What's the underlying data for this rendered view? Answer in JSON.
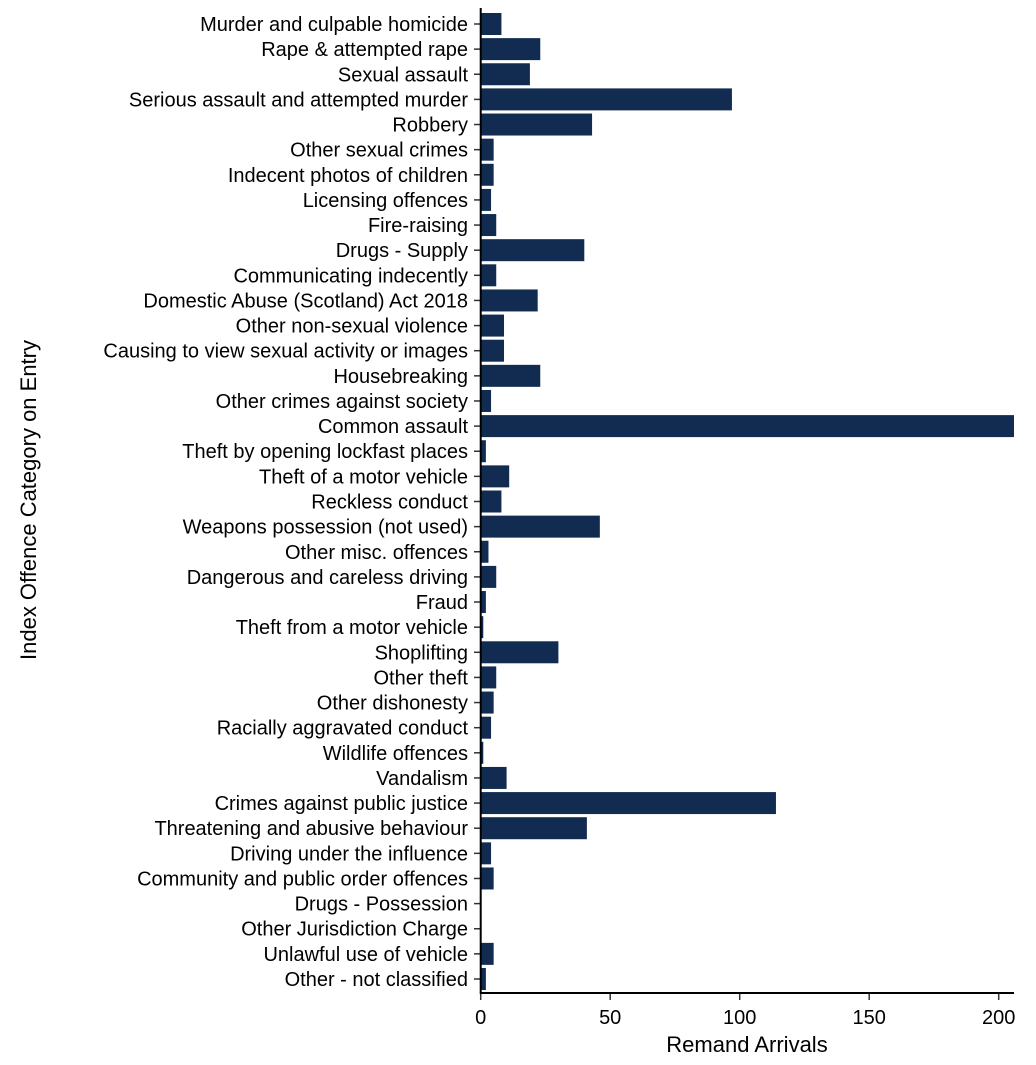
{
  "chart_data": {
    "type": "bar",
    "orientation": "horizontal",
    "xlabel": "Remand Arrivals",
    "ylabel": "Index Offence Category on Entry",
    "xlim": [
      0,
      206
    ],
    "xticks": [
      "0",
      "50",
      "100",
      "150",
      "200"
    ],
    "grid": false,
    "bar_color": "#122c51",
    "categories": [
      "Murder and culpable homicide",
      "Rape & attempted rape",
      "Sexual assault",
      "Serious assault and attempted murder",
      "Robbery",
      "Other sexual crimes",
      "Indecent photos of children",
      "Licensing offences",
      "Fire-raising",
      "Drugs - Supply",
      "Communicating indecently",
      "Domestic Abuse (Scotland) Act 2018",
      "Other non-sexual violence",
      "Causing to view sexual activity or images",
      "Housebreaking",
      "Other crimes against society",
      "Common assault",
      "Theft by opening lockfast places",
      "Theft of a motor vehicle",
      "Reckless conduct",
      "Weapons possession (not used)",
      "Other misc. offences",
      "Dangerous and careless driving",
      "Fraud",
      "Theft from a motor vehicle",
      "Shoplifting",
      "Other theft",
      "Other dishonesty",
      "Racially aggravated conduct",
      "Wildlife offences",
      "Vandalism",
      "Crimes against public justice",
      "Threatening and abusive behaviour",
      "Driving under the influence",
      "Community and public order offences",
      "Drugs - Possession",
      "Other Jurisdiction Charge",
      "Unlawful use of vehicle",
      "Other - not classified"
    ],
    "values": [
      8,
      23,
      19,
      97,
      43,
      5,
      5,
      4,
      6,
      40,
      6,
      22,
      9,
      9,
      23,
      4,
      206,
      2,
      11,
      8,
      46,
      3,
      6,
      2,
      1,
      30,
      6,
      5,
      4,
      1,
      10,
      114,
      41,
      4,
      5,
      0,
      0,
      5,
      2
    ]
  }
}
